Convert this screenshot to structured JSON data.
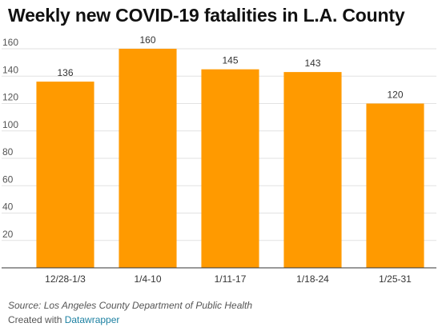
{
  "title": "Weekly new COVID-19 fatalities in L.A. County",
  "chart_data": {
    "type": "bar",
    "title": "Weekly new COVID-19 fatalities in L.A. County",
    "categories": [
      "12/28-1/3",
      "1/4-10",
      "1/11-17",
      "1/18-24",
      "1/25-31"
    ],
    "values": [
      136,
      160,
      145,
      143,
      120
    ],
    "value_labels": [
      "136",
      "160",
      "145",
      "143",
      "120"
    ],
    "xlabel": "",
    "ylabel": "",
    "ylim": [
      0,
      160
    ],
    "yticks": [
      20,
      40,
      60,
      80,
      100,
      120,
      140,
      160
    ],
    "ytick_labels": [
      "20",
      "40",
      "60",
      "80",
      "100",
      "120",
      "140",
      "160"
    ],
    "grid": true,
    "bar_color": "#ff9a00"
  },
  "footer": {
    "source": "Source: Los Angeles County Department of Public Health",
    "credit_prefix": "Created with ",
    "credit_brand": "Datawrapper"
  }
}
